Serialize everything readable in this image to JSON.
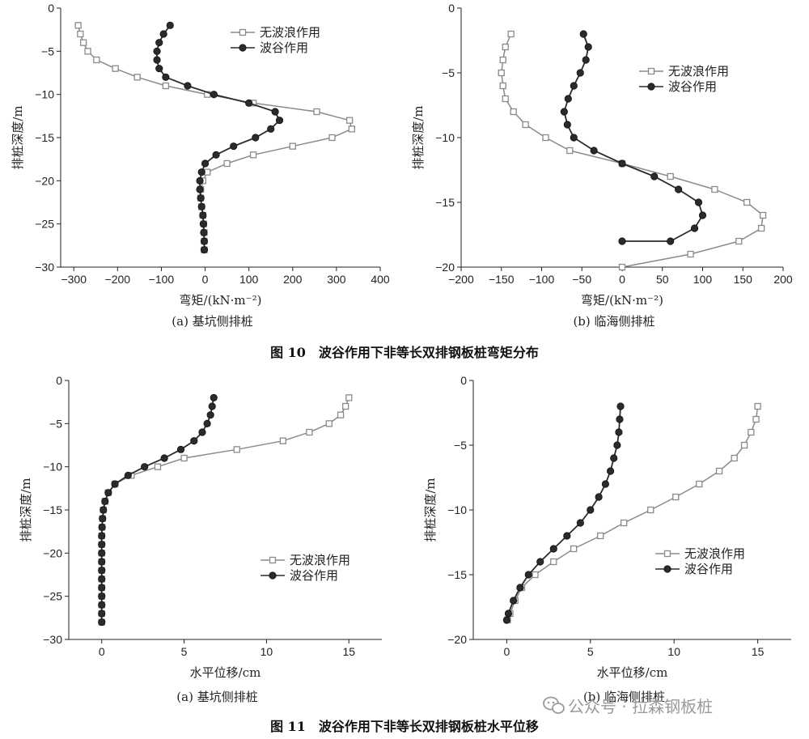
{
  "figure_captions": {
    "fig10": "图 10　波谷作用下非等长双排钢板桩弯矩分布",
    "fig11": "图 11　波谷作用下非等长双排钢板桩水平位移"
  },
  "watermark": "公众号 · 拉森钢板桩",
  "colors": {
    "no_wave": "#8a8a8a",
    "trough": "#2b2b2b"
  },
  "chart_data": [
    {
      "type": "line",
      "caption": "(a)  基坑侧排桩",
      "xlabel": "弯矩/(kN·m⁻²)",
      "ylabel": "排桩深度/m",
      "xlim": [
        -330,
        400
      ],
      "ylim": [
        -30,
        0
      ],
      "xticks": [
        -300,
        -200,
        -100,
        0,
        100,
        200,
        300,
        400
      ],
      "yticks": [
        0,
        -5,
        -10,
        -15,
        -20,
        -25,
        -30
      ],
      "legend": "top-right",
      "series": [
        {
          "name": "无波浪作用",
          "marker": "square",
          "x": [
            -290,
            -285,
            -278,
            -268,
            -248,
            -205,
            -155,
            -90,
            5,
            110,
            255,
            330,
            335,
            290,
            200,
            110,
            50,
            5,
            -5,
            -10,
            -10,
            -8,
            -5,
            -3,
            -2,
            -2,
            -2
          ],
          "y": [
            -2,
            -3,
            -4,
            -5,
            -6,
            -7,
            -8,
            -9,
            -10,
            -11,
            -12,
            -13,
            -14,
            -15,
            -16,
            -17,
            -18,
            -19,
            -20,
            -21,
            -22,
            -23,
            -24,
            -25,
            -26,
            -27,
            -28
          ]
        },
        {
          "name": "波谷作用",
          "marker": "circle",
          "x": [
            -80,
            -95,
            -105,
            -110,
            -110,
            -105,
            -90,
            -40,
            20,
            100,
            160,
            170,
            150,
            115,
            65,
            25,
            0,
            -8,
            -12,
            -12,
            -10,
            -8,
            -5,
            -4,
            -3,
            -2,
            -2
          ],
          "y": [
            -2,
            -3,
            -4,
            -5,
            -6,
            -7,
            -8,
            -9,
            -10,
            -11,
            -12,
            -13,
            -14,
            -15,
            -16,
            -17,
            -18,
            -19,
            -20,
            -21,
            -22,
            -23,
            -24,
            -25,
            -26,
            -27,
            -28
          ]
        }
      ]
    },
    {
      "type": "line",
      "caption": "(b)  临海侧排桩",
      "xlabel": "弯矩/(kN·m⁻²)",
      "ylabel": "排桩深度/m",
      "xlim": [
        -200,
        200
      ],
      "ylim": [
        -20,
        0
      ],
      "xticks": [
        -200,
        -150,
        -100,
        -50,
        0,
        50,
        100,
        150,
        200
      ],
      "yticks": [
        0,
        -5,
        -10,
        -15,
        -20
      ],
      "legend": "top-right",
      "series": [
        {
          "name": "无波浪作用",
          "marker": "square",
          "x": [
            -138,
            -145,
            -148,
            -150,
            -148,
            -145,
            -135,
            -120,
            -95,
            -65,
            0,
            60,
            115,
            155,
            175,
            173,
            145,
            85,
            0
          ],
          "y": [
            -2,
            -3,
            -4,
            -5,
            -6,
            -7,
            -8,
            -9,
            -10,
            -11,
            -12,
            -13,
            -14,
            -15,
            -16,
            -17,
            -18,
            -19,
            -20
          ]
        },
        {
          "name": "波谷作用",
          "marker": "circle",
          "x": [
            -48,
            -42,
            -45,
            -52,
            -60,
            -67,
            -72,
            -68,
            -60,
            -35,
            0,
            40,
            70,
            95,
            100,
            90,
            60,
            0
          ],
          "y": [
            -2,
            -3,
            -4,
            -5,
            -6,
            -7,
            -8,
            -9,
            -10,
            -11,
            -12,
            -13,
            -14,
            -15,
            -16,
            -17,
            -18,
            -18
          ]
        }
      ]
    },
    {
      "type": "line",
      "caption": "(a)  基坑侧排桩",
      "xlabel": "水平位移/cm",
      "ylabel": "排桩深度/m",
      "xlim": [
        -2,
        17
      ],
      "ylim": [
        -30,
        0
      ],
      "xticks": [
        0,
        5,
        10,
        15
      ],
      "yticks": [
        0,
        -5,
        -10,
        -15,
        -20,
        -25,
        -30
      ],
      "legend": "center-right",
      "series": [
        {
          "name": "无波浪作用",
          "marker": "square",
          "x": [
            15.0,
            14.8,
            14.5,
            13.8,
            12.6,
            11.0,
            8.2,
            5.0,
            3.4,
            1.8,
            0.8,
            0.4,
            0.2,
            0.1,
            0.05,
            0.02,
            0.0,
            0.0,
            0.0,
            0.0,
            0.0,
            0.0,
            0.0,
            0.0,
            0.0,
            0.0,
            0.0
          ],
          "y": [
            -2,
            -3,
            -4,
            -5,
            -6,
            -7,
            -8,
            -9,
            -10,
            -11,
            -12,
            -13,
            -14,
            -15,
            -16,
            -17,
            -18,
            -19,
            -20,
            -21,
            -22,
            -23,
            -24,
            -25,
            -26,
            -27,
            -28
          ]
        },
        {
          "name": "波谷作用",
          "marker": "circle",
          "x": [
            6.8,
            6.7,
            6.6,
            6.4,
            6.1,
            5.6,
            4.8,
            3.8,
            2.6,
            1.6,
            0.8,
            0.4,
            0.2,
            0.1,
            0.05,
            0.02,
            0.0,
            0.0,
            0.0,
            0.0,
            0.0,
            0.0,
            0.0,
            0.0,
            0.0,
            0.0,
            0.0
          ],
          "y": [
            -2,
            -3,
            -4,
            -5,
            -6,
            -7,
            -8,
            -9,
            -10,
            -11,
            -12,
            -13,
            -14,
            -15,
            -16,
            -17,
            -18,
            -19,
            -20,
            -21,
            -22,
            -23,
            -24,
            -25,
            -26,
            -27,
            -28
          ]
        }
      ]
    },
    {
      "type": "line",
      "caption": "(b)  临海侧排桩",
      "xlabel": "水平位移/cm",
      "ylabel": "排桩深度/m",
      "xlim": [
        -2,
        17
      ],
      "ylim": [
        -20,
        0
      ],
      "xticks": [
        0,
        5,
        10,
        15
      ],
      "yticks": [
        0,
        -5,
        -10,
        -15,
        -20
      ],
      "legend": "center-right",
      "series": [
        {
          "name": "无波浪作用",
          "marker": "square",
          "x": [
            15.0,
            14.9,
            14.6,
            14.2,
            13.6,
            12.7,
            11.5,
            10.1,
            8.6,
            7.0,
            5.6,
            4.0,
            2.8,
            1.7,
            0.9,
            0.5,
            0.2,
            0.05
          ],
          "y": [
            -2,
            -3,
            -4,
            -5,
            -6,
            -7,
            -8,
            -9,
            -10,
            -11,
            -12,
            -13,
            -14,
            -15,
            -16,
            -17,
            -18,
            -18.5
          ]
        },
        {
          "name": "波谷作用",
          "marker": "circle",
          "x": [
            6.8,
            6.75,
            6.7,
            6.6,
            6.4,
            6.2,
            5.9,
            5.5,
            5.0,
            4.4,
            3.6,
            2.8,
            2.0,
            1.3,
            0.8,
            0.4,
            0.1,
            0.0
          ],
          "y": [
            -2,
            -3,
            -4,
            -5,
            -6,
            -7,
            -8,
            -9,
            -10,
            -11,
            -12,
            -13,
            -14,
            -15,
            -16,
            -17,
            -18,
            -18.5
          ]
        }
      ]
    }
  ]
}
